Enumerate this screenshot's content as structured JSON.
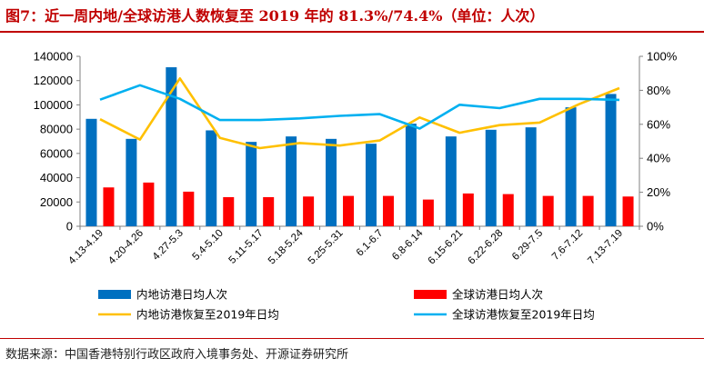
{
  "header": {
    "title": "图7：近一周内地/全球访港人数恢复至 2019 年的 81.3%/74.4%（单位：人次）"
  },
  "footer": {
    "source": "数据来源：中国香港特别行政区政府入境事务处、开源证券研究所"
  },
  "colors": {
    "title": "#c00000",
    "mainland_bar": "#0070c0",
    "global_bar": "#ff0000",
    "mainland_line": "#ffc000",
    "global_line": "#00b0f0"
  },
  "chart_data": {
    "type": "bar",
    "categories": [
      "4.13-4.19",
      "4.20-4.26",
      "4.27-5.3",
      "5.4-5.10",
      "5.11-5.17",
      "5.18-5.24",
      "5.25-5.31",
      "6.1-6.7",
      "6.8-6.14",
      "6.15-6.21",
      "6.22-6.28",
      "6.29-7.5",
      "7.6-7.12",
      "7.13-7.19"
    ],
    "series": [
      {
        "name": "内地访港日均人次",
        "kind": "bar",
        "axis": "left",
        "values": [
          88500,
          72000,
          131000,
          79000,
          69500,
          74000,
          72000,
          68000,
          84500,
          74000,
          79500,
          81500,
          98000,
          109000
        ]
      },
      {
        "name": "全球访港日均人次",
        "kind": "bar",
        "axis": "left",
        "values": [
          32000,
          36000,
          28500,
          24000,
          24000,
          24500,
          25000,
          25000,
          22000,
          27000,
          26500,
          25000,
          25000,
          24500
        ]
      },
      {
        "name": "内地访港恢复至2019年日均",
        "kind": "line",
        "axis": "right",
        "values": [
          63,
          51,
          87,
          52,
          46,
          49,
          47.5,
          50.5,
          64,
          55,
          59.5,
          61,
          72,
          81.3
        ]
      },
      {
        "name": "全球访港恢复至2019年日均",
        "kind": "line",
        "axis": "right",
        "values": [
          74.5,
          83,
          75,
          62.5,
          62.5,
          63.5,
          65,
          66,
          57.5,
          71.5,
          69.5,
          75,
          75,
          74.4
        ]
      }
    ],
    "y_left": {
      "min": 0,
      "max": 140000,
      "ticks": [
        "0",
        "20000",
        "40000",
        "60000",
        "80000",
        "100000",
        "120000",
        "140000"
      ]
    },
    "y_right": {
      "min": 0,
      "max": 100,
      "ticks": [
        "0%",
        "20%",
        "40%",
        "60%",
        "80%",
        "100%"
      ]
    },
    "grid": false,
    "legend": "bottom"
  }
}
